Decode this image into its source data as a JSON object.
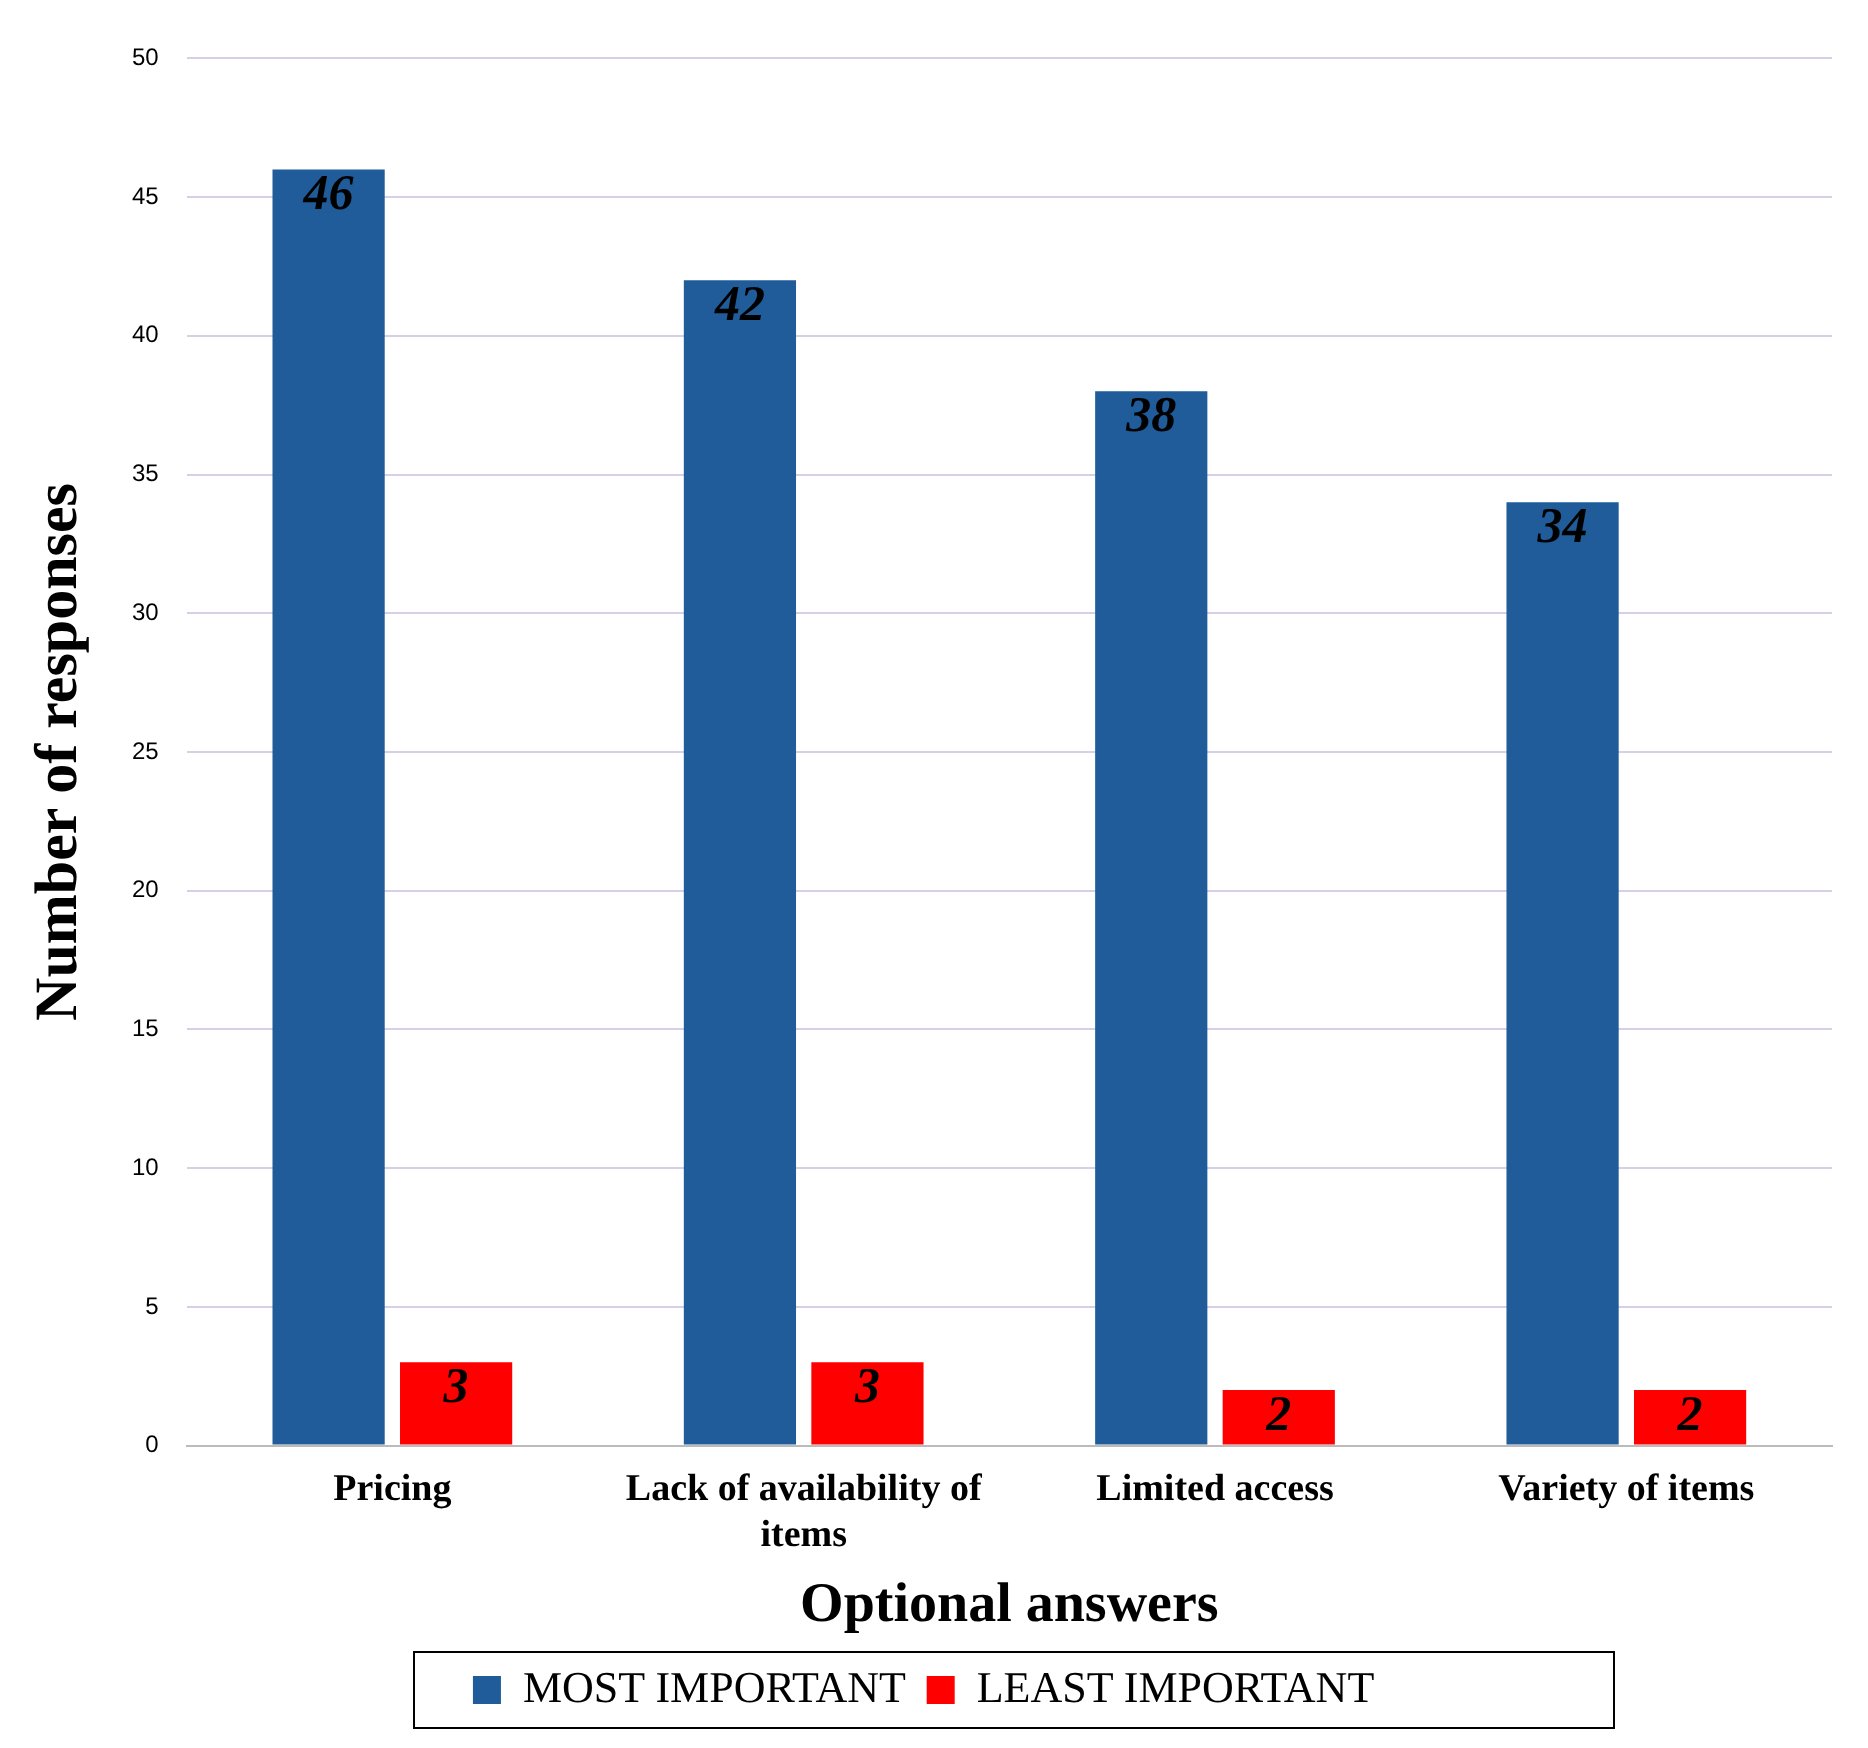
{
  "chart_data": {
    "type": "bar",
    "xlabel": "Optional answers",
    "ylabel": "Number of responses",
    "categories": [
      "Pricing",
      "Lack of availability of items",
      "Limited access",
      "Variety of items"
    ],
    "series": [
      {
        "name": "MOST IMPORTANT",
        "color": "#1f5c99",
        "values": [
          46,
          42,
          38,
          34
        ]
      },
      {
        "name": "LEAST IMPORTANT",
        "color": "#ff0000",
        "values": [
          3,
          3,
          2,
          2
        ]
      }
    ],
    "ylim": [
      0,
      50
    ],
    "yticks": [
      0,
      5,
      10,
      15,
      20,
      25,
      30,
      35,
      40,
      45,
      50
    ],
    "grid": "y",
    "legend": "bottom",
    "data_labels": true
  }
}
